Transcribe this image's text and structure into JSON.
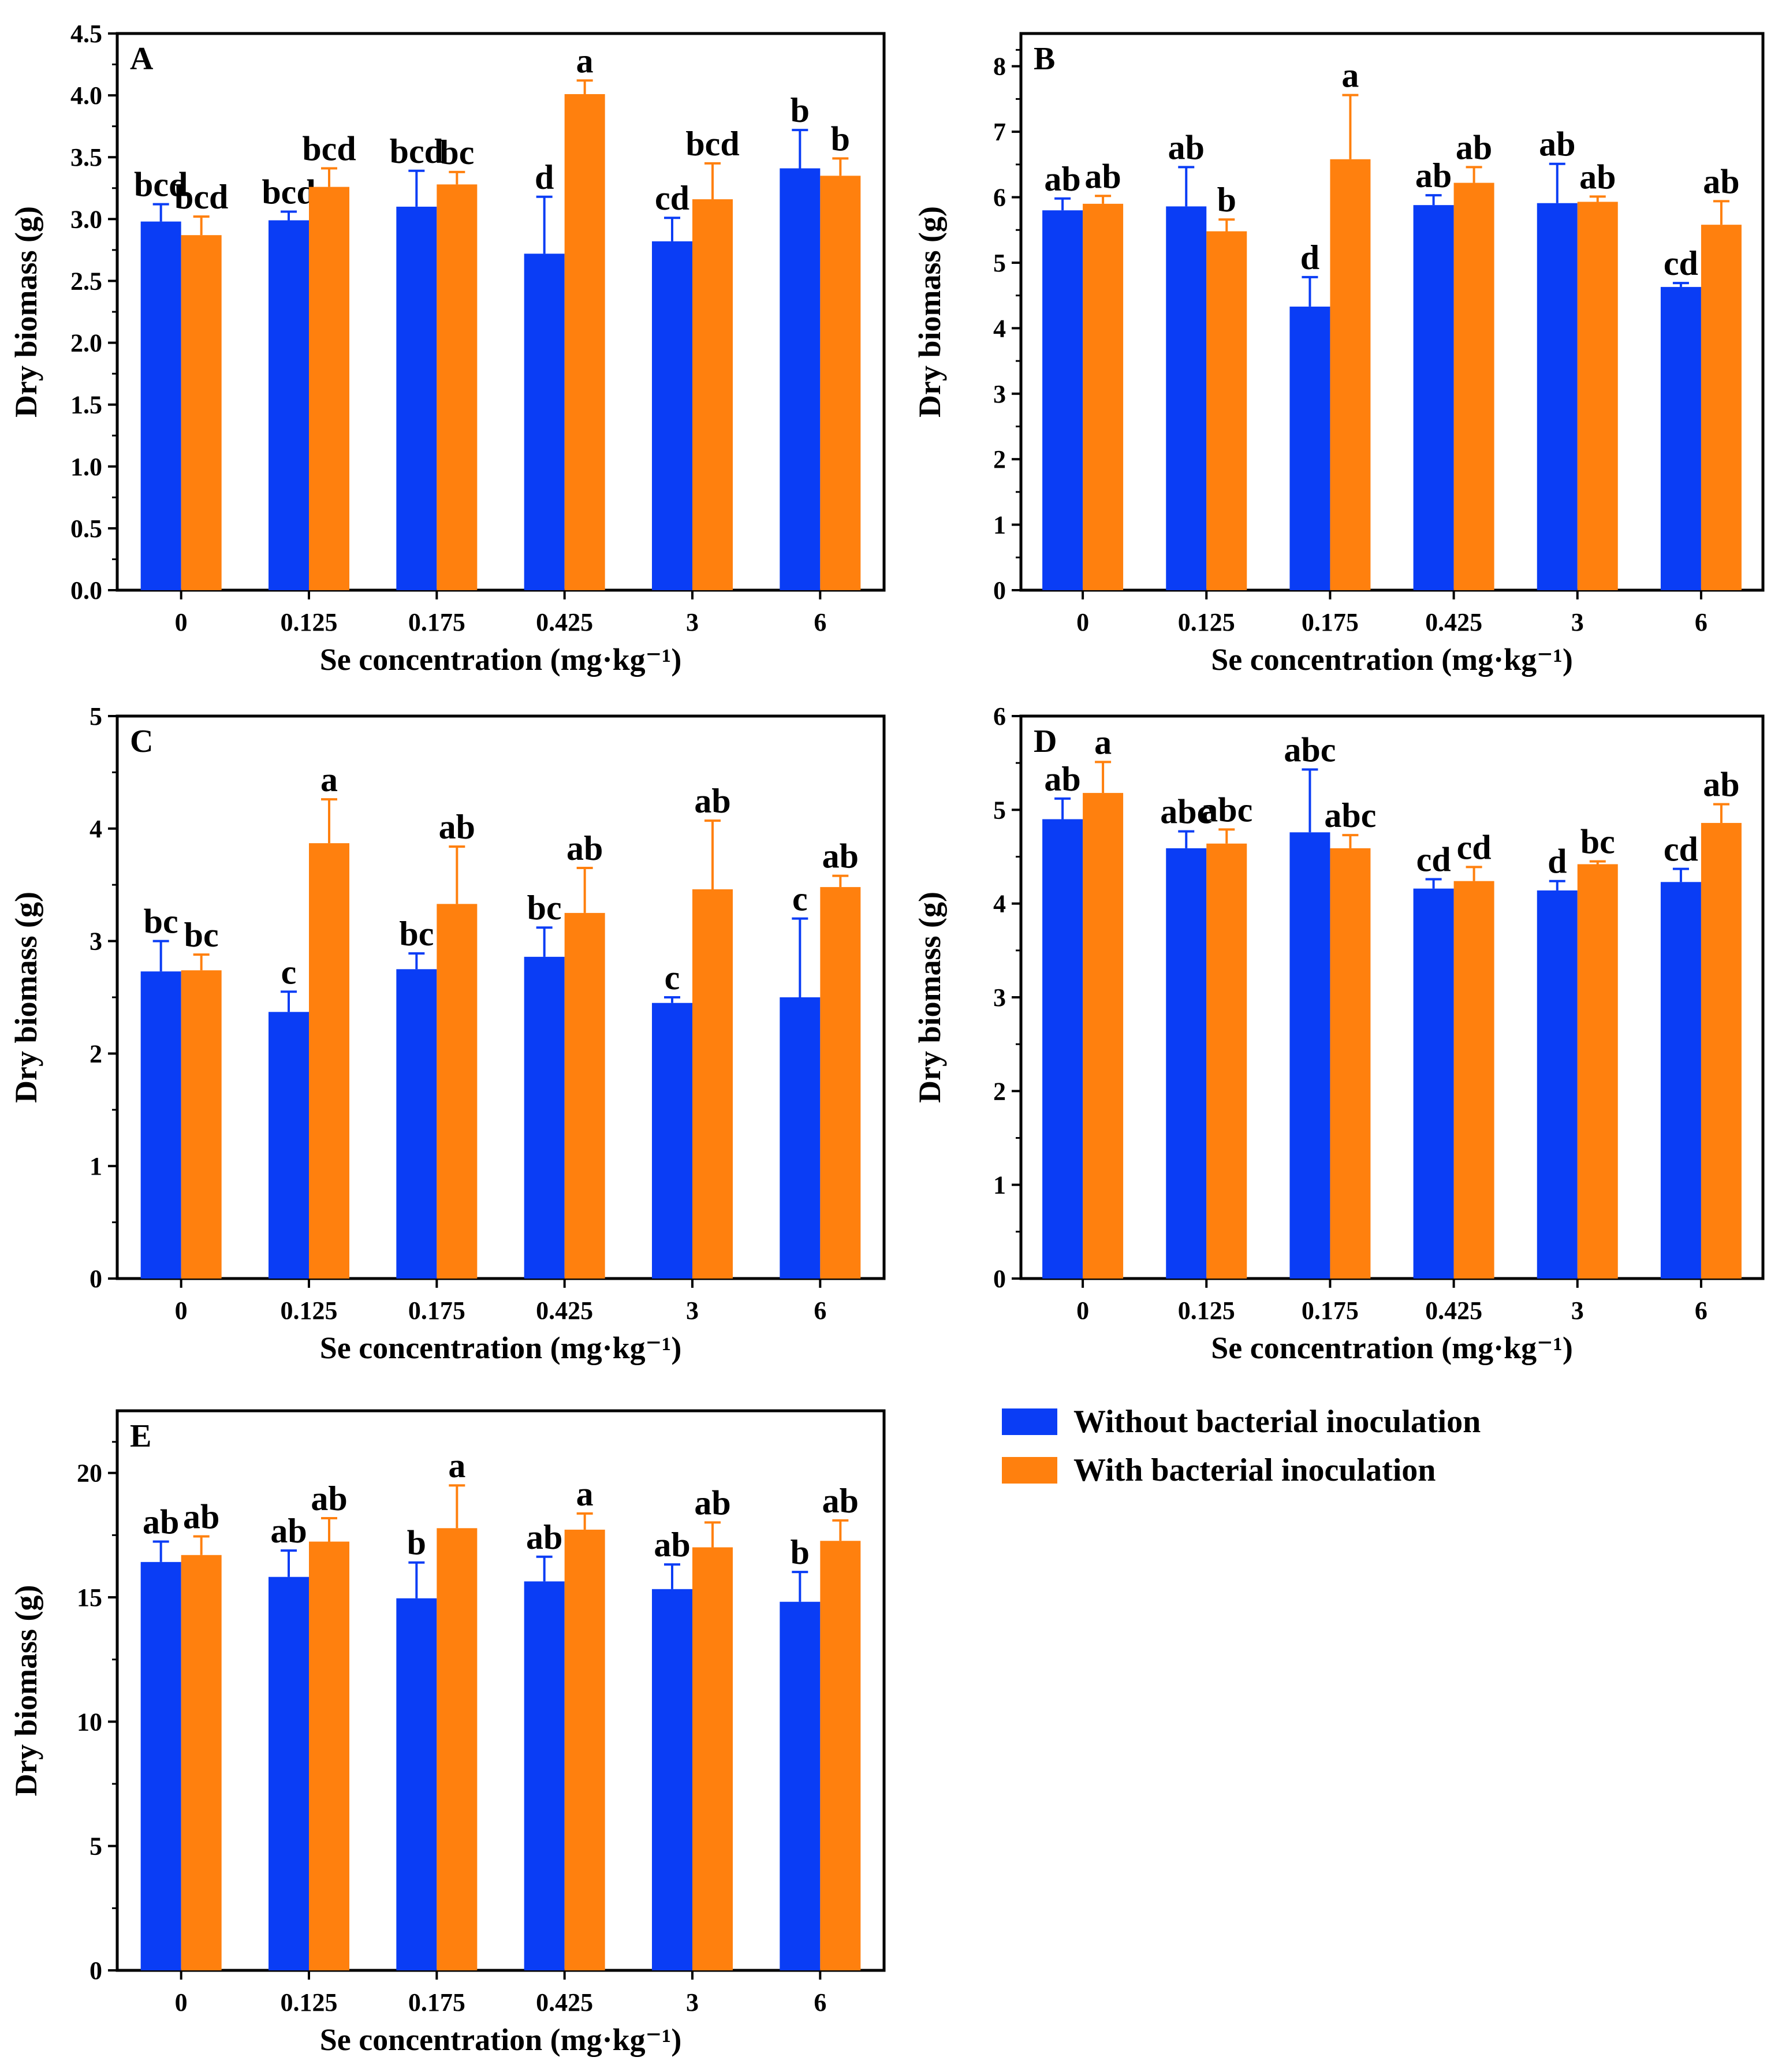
{
  "colors": {
    "without": "#0a3df5",
    "with": "#ff800e",
    "axis": "#000000"
  },
  "legend": {
    "without_label": "Without bacterial inoculation",
    "with_label": "With bacterial inoculation"
  },
  "chart_data": [
    {
      "type": "bar",
      "panel": "A",
      "categories": [
        "0",
        "0.125",
        "0.175",
        "0.425",
        "3",
        "6"
      ],
      "xlabel": "Se concentration (mg·kg⁻¹)",
      "ylabel": "Dry biomass (g)",
      "ylim": [
        0,
        4.5
      ],
      "yticks": [
        "0.0",
        "0.5",
        "1.0",
        "1.5",
        "2.0",
        "2.5",
        "3.0",
        "3.5",
        "4.0",
        "4.5"
      ],
      "series": [
        {
          "name": "Without bacterial inoculation",
          "values": [
            2.98,
            2.99,
            3.1,
            2.72,
            2.82,
            3.41
          ],
          "errors": [
            0.14,
            0.07,
            0.29,
            0.46,
            0.19,
            0.31
          ],
          "labels": [
            "bcd",
            "bcd",
            "bcd",
            "d",
            "cd",
            "b"
          ]
        },
        {
          "name": "With bacterial inoculation",
          "values": [
            2.87,
            3.26,
            3.28,
            4.01,
            3.16,
            3.35
          ],
          "errors": [
            0.15,
            0.15,
            0.1,
            0.11,
            0.29,
            0.14
          ],
          "labels": [
            "bcd",
            "bcd",
            "bc",
            "a",
            "bcd",
            "b"
          ]
        }
      ]
    },
    {
      "type": "bar",
      "panel": "B",
      "categories": [
        "0",
        "0.125",
        "0.175",
        "0.425",
        "3",
        "6"
      ],
      "xlabel": "Se concentration (mg·kg⁻¹)",
      "ylabel": "Dry biomass (g)",
      "ylim": [
        0,
        8.5
      ],
      "yticks": [
        "0",
        "1",
        "2",
        "3",
        "4",
        "5",
        "6",
        "7",
        "8"
      ],
      "series": [
        {
          "name": "Without bacterial inoculation",
          "values": [
            5.8,
            5.86,
            4.33,
            5.88,
            5.91,
            4.63
          ],
          "errors": [
            0.18,
            0.6,
            0.45,
            0.15,
            0.6,
            0.06
          ],
          "labels": [
            "ab",
            "ab",
            "d",
            "ab",
            "ab",
            "cd"
          ]
        },
        {
          "name": "With bacterial inoculation",
          "values": [
            5.9,
            5.48,
            6.58,
            6.22,
            5.93,
            5.58
          ],
          "errors": [
            0.12,
            0.18,
            0.98,
            0.24,
            0.08,
            0.36
          ],
          "labels": [
            "ab",
            "b",
            "a",
            "ab",
            "ab",
            "ab"
          ]
        }
      ]
    },
    {
      "type": "bar",
      "panel": "C",
      "categories": [
        "0",
        "0.125",
        "0.175",
        "0.425",
        "3",
        "6"
      ],
      "xlabel": "Se concentration (mg·kg⁻¹)",
      "ylabel": "Dry biomass (g)",
      "ylim": [
        0,
        5
      ],
      "yticks": [
        "0",
        "1",
        "2",
        "3",
        "4",
        "5"
      ],
      "series": [
        {
          "name": "Without bacterial inoculation",
          "values": [
            2.73,
            2.37,
            2.75,
            2.86,
            2.45,
            2.5
          ],
          "errors": [
            0.27,
            0.18,
            0.14,
            0.26,
            0.05,
            0.7
          ],
          "labels": [
            "bc",
            "c",
            "bc",
            "bc",
            "c",
            "c"
          ]
        },
        {
          "name": "With bacterial inoculation",
          "values": [
            2.74,
            3.87,
            3.33,
            3.25,
            3.46,
            3.48
          ],
          "errors": [
            0.14,
            0.39,
            0.51,
            0.4,
            0.61,
            0.1
          ],
          "labels": [
            "bc",
            "a",
            "ab",
            "ab",
            "ab",
            "ab"
          ]
        }
      ]
    },
    {
      "type": "bar",
      "panel": "D",
      "categories": [
        "0",
        "0.125",
        "0.175",
        "0.425",
        "3",
        "6"
      ],
      "xlabel": "Se concentration (mg·kg⁻¹)",
      "ylabel": "Dry biomass (g)",
      "ylim": [
        0,
        6
      ],
      "yticks": [
        "0",
        "1",
        "2",
        "3",
        "4",
        "5",
        "6"
      ],
      "series": [
        {
          "name": "Without bacterial inoculation",
          "values": [
            4.9,
            4.59,
            4.76,
            4.16,
            4.14,
            4.23
          ],
          "errors": [
            0.22,
            0.18,
            0.67,
            0.1,
            0.1,
            0.14
          ],
          "labels": [
            "ab",
            "abc",
            "abc",
            "cd",
            "d",
            "cd"
          ]
        },
        {
          "name": "With bacterial inoculation",
          "values": [
            5.18,
            4.64,
            4.59,
            4.24,
            4.42,
            4.86
          ],
          "errors": [
            0.33,
            0.15,
            0.14,
            0.15,
            0.03,
            0.2
          ],
          "labels": [
            "a",
            "abc",
            "abc",
            "cd",
            "bc",
            "ab"
          ]
        }
      ]
    },
    {
      "type": "bar",
      "panel": "E",
      "categories": [
        "0",
        "0.125",
        "0.175",
        "0.425",
        "3",
        "6"
      ],
      "xlabel": "Se concentration (mg·kg⁻¹)",
      "ylabel": "Dry biomass (g)",
      "ylim": [
        0,
        22.5
      ],
      "yticks": [
        "0",
        "5",
        "10",
        "15",
        "20"
      ],
      "series": [
        {
          "name": "Without bacterial inoculation",
          "values": [
            16.42,
            15.82,
            14.96,
            15.64,
            15.33,
            14.82
          ],
          "errors": [
            0.82,
            1.06,
            1.44,
            0.99,
            0.99,
            1.2
          ],
          "labels": [
            "ab",
            "ab",
            "b",
            "ab",
            "ab",
            "b"
          ]
        },
        {
          "name": "With bacterial inoculation",
          "values": [
            16.7,
            17.24,
            17.78,
            17.72,
            17.01,
            17.27
          ],
          "errors": [
            0.75,
            0.94,
            1.72,
            0.65,
            1.0,
            0.82
          ],
          "labels": [
            "ab",
            "ab",
            "a",
            "a",
            "ab",
            "ab"
          ]
        }
      ]
    }
  ]
}
